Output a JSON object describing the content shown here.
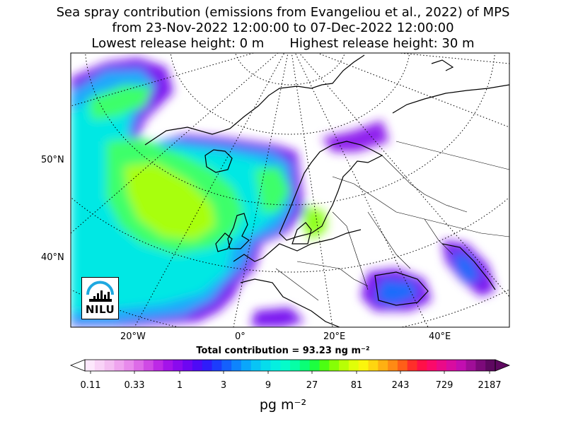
{
  "title": {
    "line1": "Sea spray contribution (emissions from Evangeliou et al., 2022) of MPS",
    "line2": "from 23-Nov-2022 12:00:00 to 07-Dec-2022 12:00:00",
    "line3_left": "Lowest release height: 0 m",
    "line3_right": "Highest release height: 30 m"
  },
  "map": {
    "lat_labels": [
      "50°N",
      "40°N"
    ],
    "lon_labels": [
      "20°W",
      "0°",
      "20°E",
      "40°E"
    ],
    "total_contribution": "Total contribution = 93.23 ng m⁻²",
    "logo_text": "NILU"
  },
  "colorbar": {
    "tick_labels": [
      "0.11",
      "0.33",
      "1",
      "3",
      "9",
      "27",
      "81",
      "243",
      "729",
      "2187"
    ],
    "unit": "pg m⁻²",
    "colors": [
      "#fde8fc",
      "#f9d3f7",
      "#f4bef2",
      "#efa4ef",
      "#e88aec",
      "#dd6be8",
      "#cf4ae5",
      "#bd29e6",
      "#a413ea",
      "#8a0aee",
      "#6e06f2",
      "#4e0af6",
      "#2f1cfa",
      "#1c3cfc",
      "#1460fd",
      "#0e84fd",
      "#0aa6fb",
      "#08c4f5",
      "#06dcec",
      "#05efe0",
      "#05fbca",
      "#06ffa6",
      "#0aff76",
      "#1cff40",
      "#4cff12",
      "#86ff05",
      "#b8ff05",
      "#e0ff08",
      "#fbf50c",
      "#ffd510",
      "#ffb012",
      "#ff8a14",
      "#ff5e18",
      "#ff2e2a",
      "#ff1048",
      "#fa0a6a",
      "#ea0a88",
      "#d80ca0",
      "#c20eb0",
      "#a00e98",
      "#7c0a7a",
      "#5e0860"
    ]
  }
}
